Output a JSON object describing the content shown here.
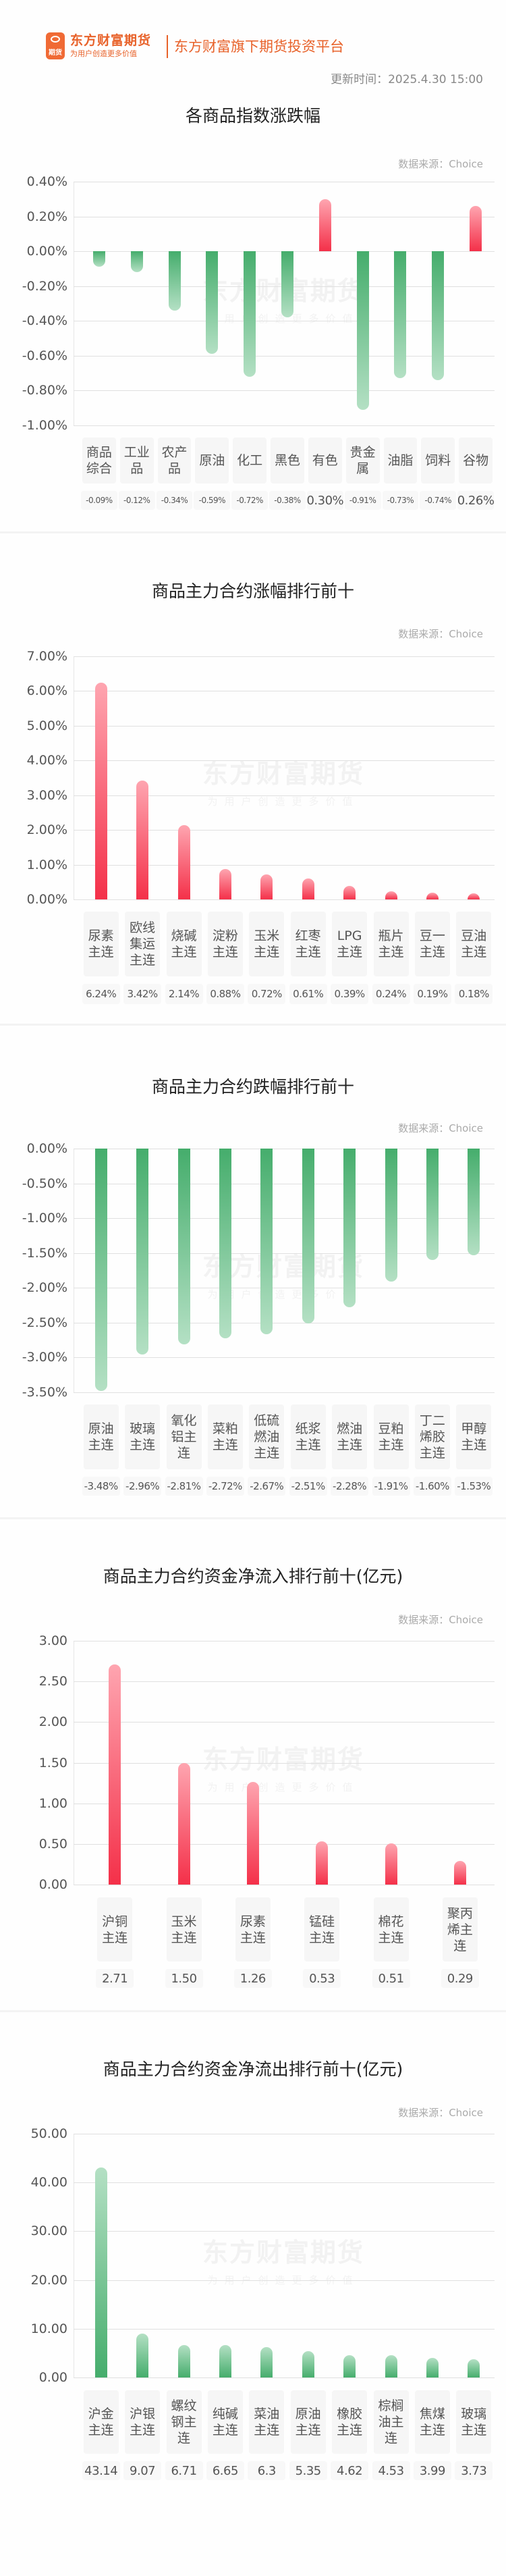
{
  "header": {
    "logo_glyph": "期货",
    "brand_name": "东方财富期货",
    "brand_slogan": "为用户创造更多价值",
    "brand_tagline": "东方财富旗下期货投资平台",
    "update_time": "更新时间：2025.4.30 15:00"
  },
  "watermark": {
    "line1": "东方财富期货",
    "line2": "为用户创造更多价值"
  },
  "colors": {
    "brand": "#e8622a",
    "up": "#f43049",
    "down": "#45ad6c"
  },
  "chart_data": [
    {
      "type": "bar",
      "title": "各商品指数涨跌幅",
      "source": "数据来源：Choice",
      "categories": [
        "商品综合",
        "工业品",
        "农产品",
        "原油",
        "化工",
        "黑色",
        "有色",
        "贵金属",
        "油脂",
        "饲料",
        "谷物"
      ],
      "values": [
        -0.09,
        -0.12,
        -0.34,
        -0.59,
        -0.72,
        -0.38,
        0.3,
        -0.91,
        -0.73,
        -0.74,
        0.26
      ],
      "value_labels": [
        "-0.09%",
        "-0.12%",
        "-0.34%",
        "-0.59%",
        "-0.72%",
        "-0.38%",
        "0.30%",
        "-0.91%",
        "-0.73%",
        "-0.74%",
        "0.26%"
      ],
      "yticks": [
        "0.40%",
        "0.20%",
        "0.00%",
        "-0.20%",
        "-0.40%",
        "-0.60%",
        "-0.80%",
        "-1.00%"
      ],
      "ylim": [
        -1.0,
        0.4
      ],
      "unit": "%",
      "grid": true
    },
    {
      "type": "bar",
      "title": "商品主力合约涨幅排行前十",
      "source": "数据来源：Choice",
      "categories": [
        "尿素主连",
        "欧线集运主连",
        "烧碱主连",
        "淀粉主连",
        "玉米主连",
        "红枣主连",
        "LPG主连",
        "瓶片主连",
        "豆一主连",
        "豆油主连"
      ],
      "values": [
        6.24,
        3.42,
        2.14,
        0.88,
        0.72,
        0.61,
        0.39,
        0.24,
        0.19,
        0.18
      ],
      "value_labels": [
        "6.24%",
        "3.42%",
        "2.14%",
        "0.88%",
        "0.72%",
        "0.61%",
        "0.39%",
        "0.24%",
        "0.19%",
        "0.18%"
      ],
      "yticks": [
        "7.00%",
        "6.00%",
        "5.00%",
        "4.00%",
        "3.00%",
        "2.00%",
        "1.00%",
        "0.00%"
      ],
      "ylim": [
        0,
        7.0
      ],
      "unit": "%",
      "grid": true
    },
    {
      "type": "bar",
      "title": "商品主力合约跌幅排行前十",
      "source": "数据来源：Choice",
      "categories": [
        "原油主连",
        "玻璃主连",
        "氧化铝主连",
        "菜粕主连",
        "低硫燃油主连",
        "纸浆主连",
        "燃油主连",
        "豆粕主连",
        "丁二烯胶主连",
        "甲醇主连"
      ],
      "values": [
        -3.48,
        -2.96,
        -2.81,
        -2.72,
        -2.67,
        -2.51,
        -2.28,
        -1.91,
        -1.6,
        -1.53
      ],
      "value_labels": [
        "-3.48%",
        "-2.96%",
        "-2.81%",
        "-2.72%",
        "-2.67%",
        "-2.51%",
        "-2.28%",
        "-1.91%",
        "-1.60%",
        "-1.53%"
      ],
      "yticks": [
        "0.00%",
        "-0.50%",
        "-1.00%",
        "-1.50%",
        "-2.00%",
        "-2.50%",
        "-3.00%",
        "-3.50%"
      ],
      "ylim": [
        -3.5,
        0
      ],
      "unit": "%",
      "grid": true
    },
    {
      "type": "bar",
      "title": "商品主力合约资金净流入排行前十(亿元)",
      "source": "数据来源：Choice",
      "categories": [
        "沪铜主连",
        "玉米主连",
        "尿素主连",
        "锰硅主连",
        "棉花主连",
        "聚丙烯主连"
      ],
      "values": [
        2.71,
        1.5,
        1.26,
        0.53,
        0.51,
        0.29
      ],
      "value_labels": [
        "2.71",
        "1.50",
        "1.26",
        "0.53",
        "0.51",
        "0.29"
      ],
      "yticks": [
        "3.00",
        "2.50",
        "2.00",
        "1.50",
        "1.00",
        "0.50",
        "0.00"
      ],
      "ylim": [
        0,
        3.0
      ],
      "unit": "亿元",
      "grid": true
    },
    {
      "type": "bar",
      "title": "商品主力合约资金净流出排行前十(亿元)",
      "source": "数据来源：Choice",
      "categories": [
        "沪金主连",
        "沪银主连",
        "螺纹钢主连",
        "纯碱主连",
        "菜油主连",
        "原油主连",
        "橡胶主连",
        "棕榈油主连",
        "焦煤主连",
        "玻璃主连"
      ],
      "values": [
        43.14,
        9.07,
        6.71,
        6.65,
        6.3,
        5.35,
        4.62,
        4.53,
        3.99,
        3.73
      ],
      "value_labels": [
        "43.14",
        "9.07",
        "6.71",
        "6.65",
        "6.3",
        "5.35",
        "4.62",
        "4.53",
        "3.99",
        "3.73"
      ],
      "yticks": [
        "50.00",
        "40.00",
        "30.00",
        "20.00",
        "10.00",
        "0.00"
      ],
      "ylim": [
        0,
        50.0
      ],
      "unit": "亿元",
      "grid": true
    }
  ],
  "category_lines": [
    [
      [
        "商品",
        "综合"
      ],
      [
        "工业",
        "品"
      ],
      [
        "农产",
        "品"
      ],
      [
        "原油"
      ],
      [
        "化工"
      ],
      [
        "黑色"
      ],
      [
        "有色"
      ],
      [
        "贵金",
        "属"
      ],
      [
        "油脂"
      ],
      [
        "饲料"
      ],
      [
        "谷物"
      ]
    ],
    [
      [
        "尿素",
        "主连"
      ],
      [
        "欧线",
        "集运",
        "主连"
      ],
      [
        "烧碱",
        "主连"
      ],
      [
        "淀粉",
        "主连"
      ],
      [
        "玉米",
        "主连"
      ],
      [
        "红枣",
        "主连"
      ],
      [
        "LPG",
        "主连"
      ],
      [
        "瓶片",
        "主连"
      ],
      [
        "豆一",
        "主连"
      ],
      [
        "豆油",
        "主连"
      ]
    ],
    [
      [
        "原油",
        "主连"
      ],
      [
        "玻璃",
        "主连"
      ],
      [
        "氧化",
        "铝主",
        "连"
      ],
      [
        "菜粕",
        "主连"
      ],
      [
        "低硫",
        "燃油",
        "主连"
      ],
      [
        "纸浆",
        "主连"
      ],
      [
        "燃油",
        "主连"
      ],
      [
        "豆粕",
        "主连"
      ],
      [
        "丁二",
        "烯胶",
        "主连"
      ],
      [
        "甲醇",
        "主连"
      ]
    ],
    [
      [
        "沪铜",
        "主连"
      ],
      [
        "玉米",
        "主连"
      ],
      [
        "尿素",
        "主连"
      ],
      [
        "锰硅",
        "主连"
      ],
      [
        "棉花",
        "主连"
      ],
      [
        "聚丙",
        "烯主",
        "连"
      ]
    ],
    [
      [
        "沪金",
        "主连"
      ],
      [
        "沪银",
        "主连"
      ],
      [
        "螺纹",
        "钢主",
        "连"
      ],
      [
        "纯碱",
        "主连"
      ],
      [
        "菜油",
        "主连"
      ],
      [
        "原油",
        "主连"
      ],
      [
        "橡胶",
        "主连"
      ],
      [
        "棕榈",
        "油主",
        "连"
      ],
      [
        "焦煤",
        "主连"
      ],
      [
        "玻璃",
        "主连"
      ]
    ]
  ]
}
